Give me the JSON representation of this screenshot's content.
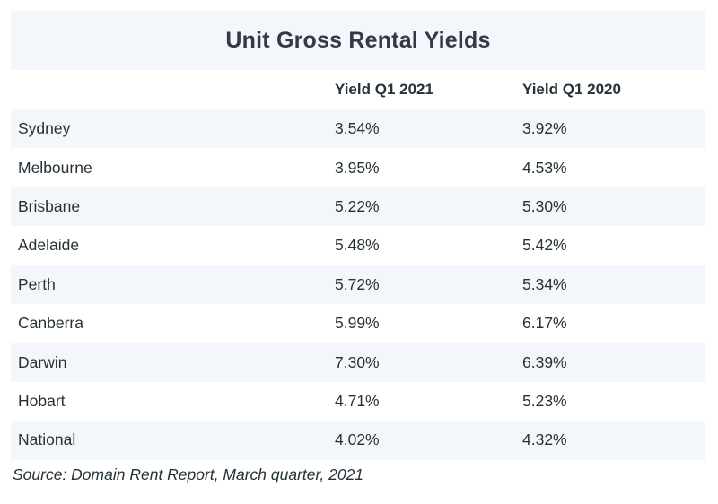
{
  "chart_data": {
    "type": "table",
    "title": "Unit Gross Rental Yields",
    "columns": [
      "",
      "Yield Q1 2021",
      "Yield Q1 2020"
    ],
    "rows": [
      {
        "city": "Sydney",
        "q1_2021": "3.54%",
        "q1_2020": "3.92%"
      },
      {
        "city": "Melbourne",
        "q1_2021": "3.95%",
        "q1_2020": "4.53%"
      },
      {
        "city": "Brisbane",
        "q1_2021": "5.22%",
        "q1_2020": "5.30%"
      },
      {
        "city": "Adelaide",
        "q1_2021": "5.48%",
        "q1_2020": "5.42%"
      },
      {
        "city": "Perth",
        "q1_2021": "5.72%",
        "q1_2020": "5.34%"
      },
      {
        "city": "Canberra",
        "q1_2021": "5.99%",
        "q1_2020": "6.17%"
      },
      {
        "city": "Darwin",
        "q1_2021": "7.30%",
        "q1_2020": "6.39%"
      },
      {
        "city": "Hobart",
        "q1_2021": "4.71%",
        "q1_2020": "5.23%"
      },
      {
        "city": "National",
        "q1_2021": "4.02%",
        "q1_2020": "4.32%"
      }
    ],
    "source": "Source: Domain Rent Report, March quarter, 2021"
  },
  "colors": {
    "band": "#f3f6fa",
    "text": "#263238",
    "title": "#333a45"
  }
}
